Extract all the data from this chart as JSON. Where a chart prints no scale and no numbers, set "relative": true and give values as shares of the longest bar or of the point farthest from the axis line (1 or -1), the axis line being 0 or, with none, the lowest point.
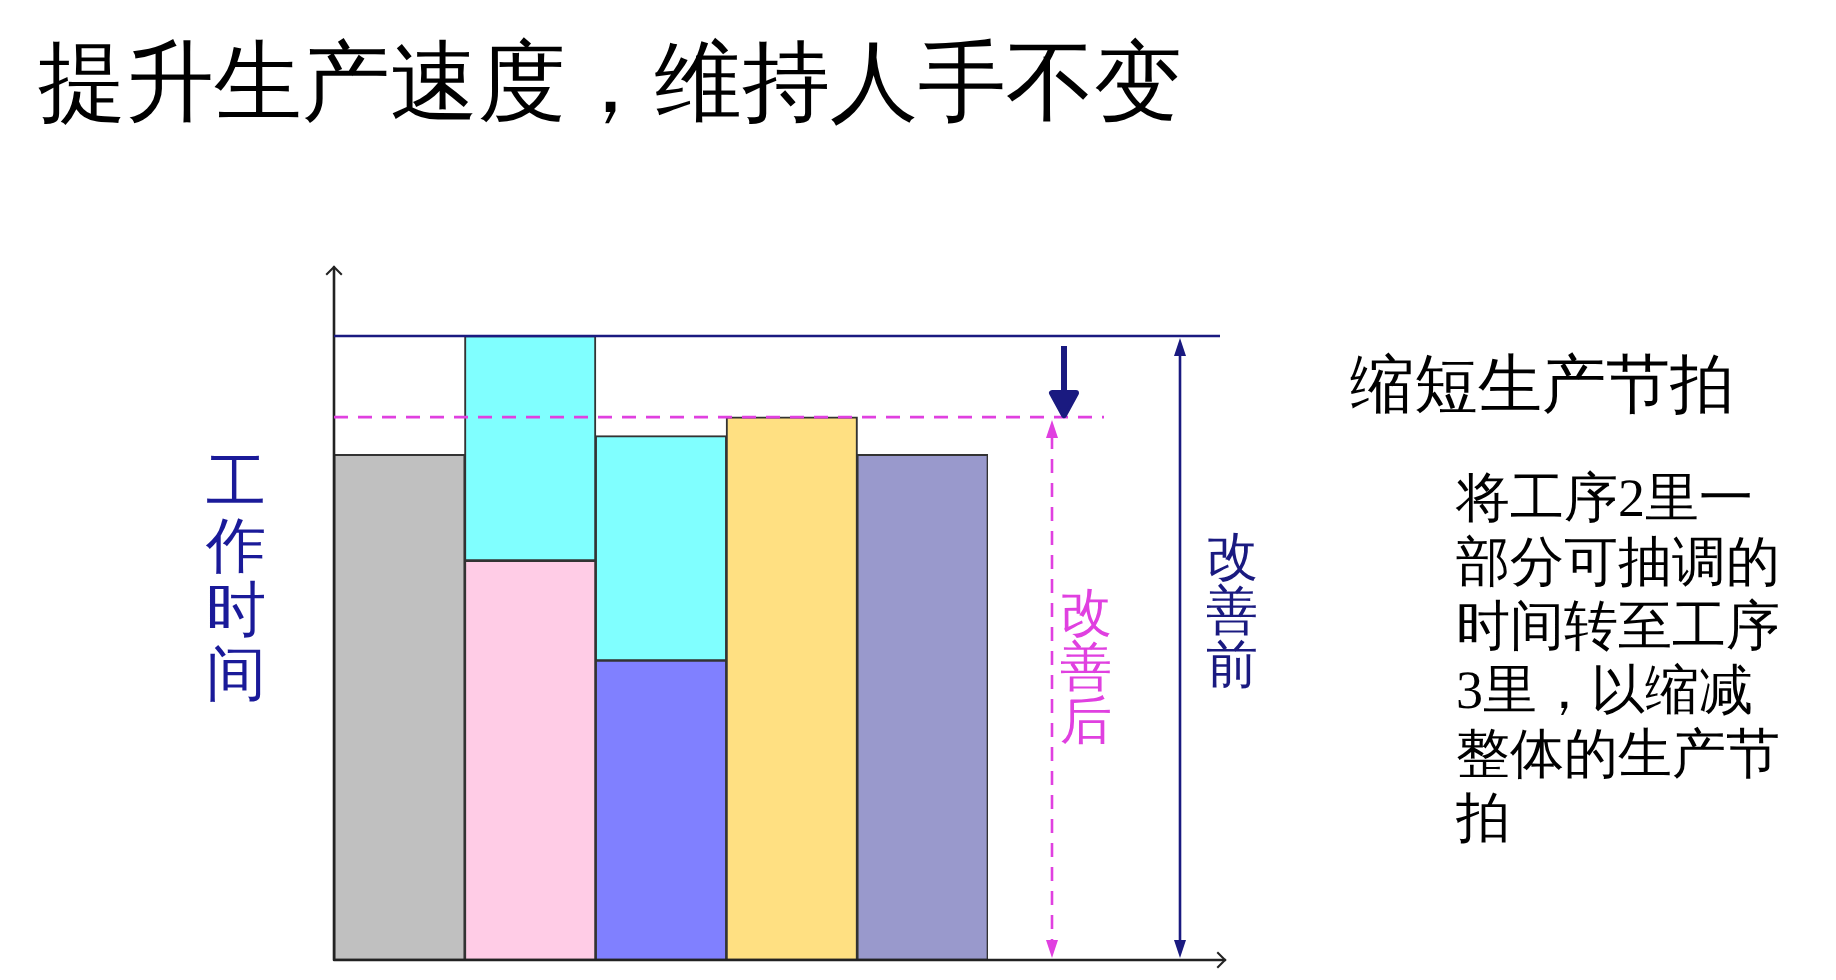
{
  "chart_data": {
    "type": "bar",
    "title": "提升生产速度，维持人手不变",
    "ylabel": "工作时间",
    "categories": [
      null,
      null,
      null,
      null,
      null
    ],
    "stacked": true,
    "relative": true,
    "series": [
      {
        "colors": [
          "#c0c0c0",
          "#ffcce6",
          "#8080ff",
          "#ffe082",
          "#9999cc"
        ],
        "values": [
          0.81,
          0.64,
          0.48,
          0.87,
          0.81
        ]
      },
      {
        "color": "#80ffff",
        "values": [
          null,
          0.36,
          0.36,
          null,
          null
        ]
      }
    ],
    "ref_lines": [
      {
        "axis": "y",
        "value": 1,
        "label": "改善前",
        "color": "#1a1a80",
        "line_style": "solid"
      },
      {
        "axis": "y",
        "value": 0.87,
        "label": "改善后",
        "color": "#e040e0",
        "line_style": "dashed"
      }
    ],
    "annotations": [
      "缩短生产节拍",
      "将工序2里一部分可抽调的时间转至工序3里，以缩减整体的生产节拍"
    ]
  }
}
